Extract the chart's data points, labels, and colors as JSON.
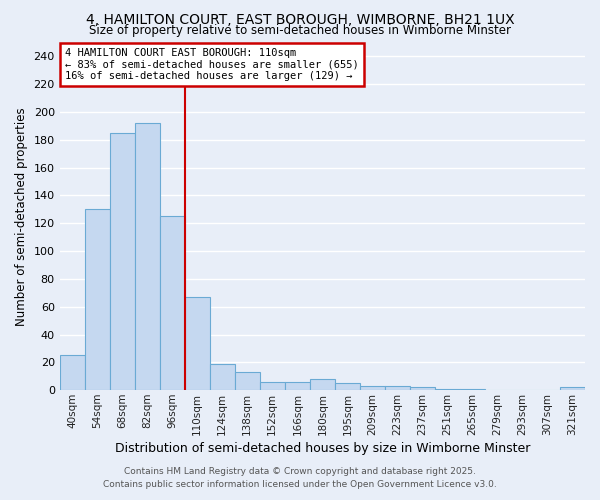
{
  "title1": "4, HAMILTON COURT, EAST BOROUGH, WIMBORNE, BH21 1UX",
  "title2": "Size of property relative to semi-detached houses in Wimborne Minster",
  "xlabel": "Distribution of semi-detached houses by size in Wimborne Minster",
  "ylabel": "Number of semi-detached properties",
  "categories": [
    "40sqm",
    "54sqm",
    "68sqm",
    "82sqm",
    "96sqm",
    "110sqm",
    "124sqm",
    "138sqm",
    "152sqm",
    "166sqm",
    "180sqm",
    "195sqm",
    "209sqm",
    "223sqm",
    "237sqm",
    "251sqm",
    "265sqm",
    "279sqm",
    "293sqm",
    "307sqm",
    "321sqm"
  ],
  "values": [
    25,
    130,
    185,
    192,
    125,
    67,
    19,
    13,
    6,
    6,
    8,
    5,
    3,
    3,
    2,
    1,
    1,
    0,
    0,
    0,
    2
  ],
  "bar_color": "#c5d8f0",
  "bar_edge_color": "#6aaad4",
  "red_line_index": 5,
  "red_line_color": "#cc0000",
  "annotation_text": "4 HAMILTON COURT EAST BOROUGH: 110sqm\n← 83% of semi-detached houses are smaller (655)\n16% of semi-detached houses are larger (129) →",
  "annotation_box_color": "#ffffff",
  "annotation_box_edge": "#cc0000",
  "ylim": [
    0,
    250
  ],
  "yticks": [
    0,
    20,
    40,
    60,
    80,
    100,
    120,
    140,
    160,
    180,
    200,
    220,
    240
  ],
  "footer1": "Contains HM Land Registry data © Crown copyright and database right 2025.",
  "footer2": "Contains public sector information licensed under the Open Government Licence v3.0.",
  "background_color": "#e8eef8",
  "grid_color": "#ffffff"
}
